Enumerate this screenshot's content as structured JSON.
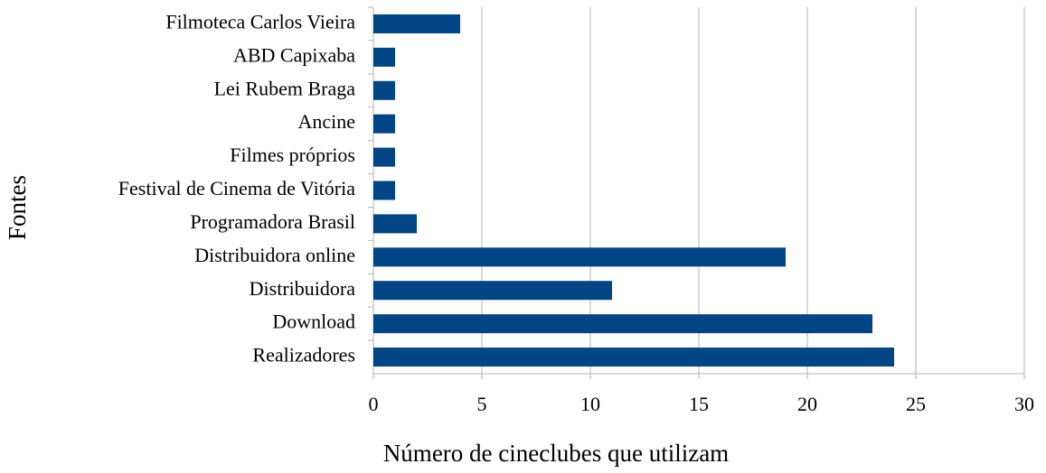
{
  "chart_data": {
    "type": "barh",
    "xlabel": "Número de cineclubes que utilizam",
    "ylabel": "Fontes",
    "categories": [
      "Filmoteca Carlos Vieira",
      "ABD Capixaba",
      "Lei Rubem Braga",
      "Ancine",
      "Filmes próprios",
      "Festival de Cinema de Vitória",
      "Programadora Brasil",
      "Distribuidora online",
      "Distribuidora",
      "Download",
      "Realizadores"
    ],
    "values": [
      4,
      1,
      1,
      1,
      1,
      1,
      2,
      19,
      11,
      23,
      24
    ],
    "color": "#004586",
    "xlim": [
      0,
      30
    ],
    "xticks": [
      0,
      5,
      10,
      15,
      20,
      25,
      30
    ],
    "grid": true
  }
}
